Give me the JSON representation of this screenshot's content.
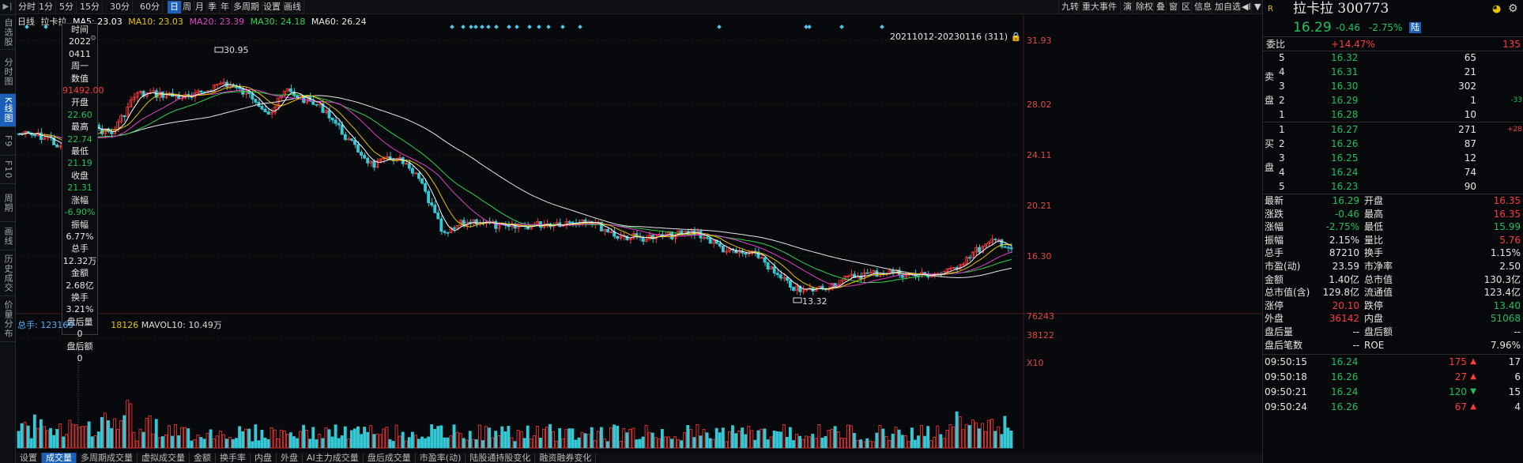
{
  "leftnav": {
    "items": [
      "自选股",
      "分时图",
      "K线图",
      "F9",
      "F10",
      "周期",
      "画线",
      "历史成交",
      "价量分布"
    ],
    "active": 2
  },
  "toolbar": {
    "menu_icon": "▶‖",
    "periods": [
      "分时",
      "1分",
      "5分",
      "15分",
      "30分",
      "60分",
      "日",
      "周",
      "月",
      "季",
      "年",
      "多周期",
      "设置",
      "画线"
    ],
    "active": "日",
    "right": [
      "九转",
      "重大事件",
      "演",
      "除权",
      "叠",
      "窗",
      "区",
      "信息",
      "加自选",
      "◀I",
      "▼"
    ]
  },
  "ma": {
    "period_label": "日线",
    "name": "拉卡拉",
    "ma5": "MA5: 23.03",
    "ma10": "MA10: 23.03",
    "ma20": "MA20: 23.39",
    "ma30": "MA30: 24.18",
    "ma60": "MA60: 26.24",
    "colors": {
      "ma5": "#ffffff",
      "ma10": "#e6c300",
      "ma20": "#e040c8",
      "ma30": "#32d24b",
      "ma60": "#e6e6e6"
    }
  },
  "range_label": "20211012-20230116 (311)",
  "price_axis": {
    "ticks": [
      "31.93",
      "28.02",
      "24.11",
      "20.21",
      "16.30"
    ],
    "vol_ticks": [
      "76243",
      "38122",
      "X10"
    ]
  },
  "high_label": "30.95",
  "low_label": "13.32",
  "infobox": [
    {
      "t": "时间",
      "c": "wh"
    },
    {
      "t": "2022",
      "c": "wh"
    },
    {
      "t": "0411",
      "c": "wh"
    },
    {
      "t": "周一",
      "c": "wh"
    },
    {
      "t": "数值",
      "c": "wh"
    },
    {
      "t": "91492.00",
      "c": "up"
    },
    {
      "t": "开盘",
      "c": "wh"
    },
    {
      "t": "22.60",
      "c": "dn"
    },
    {
      "t": "最高",
      "c": "wh"
    },
    {
      "t": "22.74",
      "c": "dn"
    },
    {
      "t": "最低",
      "c": "wh"
    },
    {
      "t": "21.19",
      "c": "dn"
    },
    {
      "t": "收盘",
      "c": "wh"
    },
    {
      "t": "21.31",
      "c": "dn"
    },
    {
      "t": "涨幅",
      "c": "wh"
    },
    {
      "t": "-6.90%",
      "c": "dn"
    },
    {
      "t": "振幅",
      "c": "wh"
    },
    {
      "t": "6.77%",
      "c": "wh"
    },
    {
      "t": "总手",
      "c": "wh"
    },
    {
      "t": "12.32万",
      "c": "wh"
    },
    {
      "t": "金额",
      "c": "wh"
    },
    {
      "t": "2.68亿",
      "c": "wh"
    },
    {
      "t": "换手",
      "c": "wh"
    },
    {
      "t": "3.21%",
      "c": "wh"
    },
    {
      "t": "盘后量",
      "c": "wh"
    },
    {
      "t": "0",
      "c": "wh"
    },
    {
      "t": "盘后额",
      "c": "wh"
    },
    {
      "t": "0",
      "c": "wh"
    }
  ],
  "volume": {
    "total_label": "总手: 123169",
    "mavol5_tail": "18126",
    "mavol10": "MAVOL10: 10.49万"
  },
  "bottom_tabs": [
    "设置",
    "成交量",
    "多周期成交量",
    "虚拟成交量",
    "金额",
    "换手率",
    "内盘",
    "外盘",
    "AI主力成交量",
    "盘后成交量",
    "市盈率(动)",
    "陆股通持股变化",
    "融资融券变化"
  ],
  "bottom_active": "成交量",
  "stock": {
    "badge": "R",
    "name": "拉卡拉",
    "code": "300773",
    "price": "16.29",
    "change": "-0.46",
    "pct": "-2.75%",
    "tag": "陆"
  },
  "weibi": {
    "label": "委比",
    "value": "+14.47%",
    "diff": "135"
  },
  "sell": [
    {
      "n": "5",
      "p": "16.32",
      "v": "65",
      "d": ""
    },
    {
      "n": "4",
      "p": "16.31",
      "v": "21",
      "d": ""
    },
    {
      "n": "3",
      "p": "16.30",
      "v": "302",
      "d": ""
    },
    {
      "n": "2",
      "p": "16.29",
      "v": "1",
      "d": "-33"
    },
    {
      "n": "1",
      "p": "16.28",
      "v": "10",
      "d": ""
    }
  ],
  "buy": [
    {
      "n": "1",
      "p": "16.27",
      "v": "271",
      "d": "+28"
    },
    {
      "n": "2",
      "p": "16.26",
      "v": "87",
      "d": ""
    },
    {
      "n": "3",
      "p": "16.25",
      "v": "12",
      "d": ""
    },
    {
      "n": "4",
      "p": "16.24",
      "v": "74",
      "d": ""
    },
    {
      "n": "5",
      "p": "16.23",
      "v": "90",
      "d": ""
    }
  ],
  "sell_label": [
    "卖",
    "盘"
  ],
  "buy_label": [
    "买",
    "盘"
  ],
  "stats": [
    [
      "最新",
      "16.29",
      "dn",
      "开盘",
      "16.35",
      "up"
    ],
    [
      "涨跌",
      "-0.46",
      "dn",
      "最高",
      "16.35",
      "up"
    ],
    [
      "涨幅",
      "-2.75%",
      "dn",
      "最低",
      "15.99",
      "dn"
    ],
    [
      "振幅",
      "2.15%",
      "wh",
      "量比",
      "5.76",
      "up"
    ],
    [
      "总手",
      "87210",
      "wh",
      "换手",
      "1.15%",
      "wh"
    ],
    [
      "市盈(动)",
      "23.59",
      "wh",
      "市净率",
      "2.50",
      "wh"
    ],
    [
      "金额",
      "1.40亿",
      "wh",
      "总市值",
      "130.3亿",
      "wh"
    ],
    [
      "总市值(含)",
      "129.8亿",
      "wh",
      "流通值",
      "123.4亿",
      "wh"
    ],
    [
      "涨停",
      "20.10",
      "up",
      "跌停",
      "13.40",
      "dn"
    ],
    [
      "外盘",
      "36142",
      "up",
      "内盘",
      "51068",
      "dn"
    ],
    [
      "盘后量",
      "--",
      "wh",
      "盘后额",
      "--",
      "wh"
    ],
    [
      "盘后笔数",
      "--",
      "wh",
      "ROE",
      "7.96%",
      "wh"
    ]
  ],
  "ticks": [
    {
      "t": "09:50:15",
      "p": "16.24",
      "v": "175",
      "dir": "up",
      "n": "17"
    },
    {
      "t": "09:50:18",
      "p": "16.26",
      "v": "27",
      "dir": "up",
      "n": "6"
    },
    {
      "t": "09:50:21",
      "p": "16.24",
      "v": "120",
      "dir": "dn",
      "n": "15"
    },
    {
      "t": "09:50:24",
      "p": "16.26",
      "v": "67",
      "dir": "up",
      "n": "4"
    }
  ]
}
